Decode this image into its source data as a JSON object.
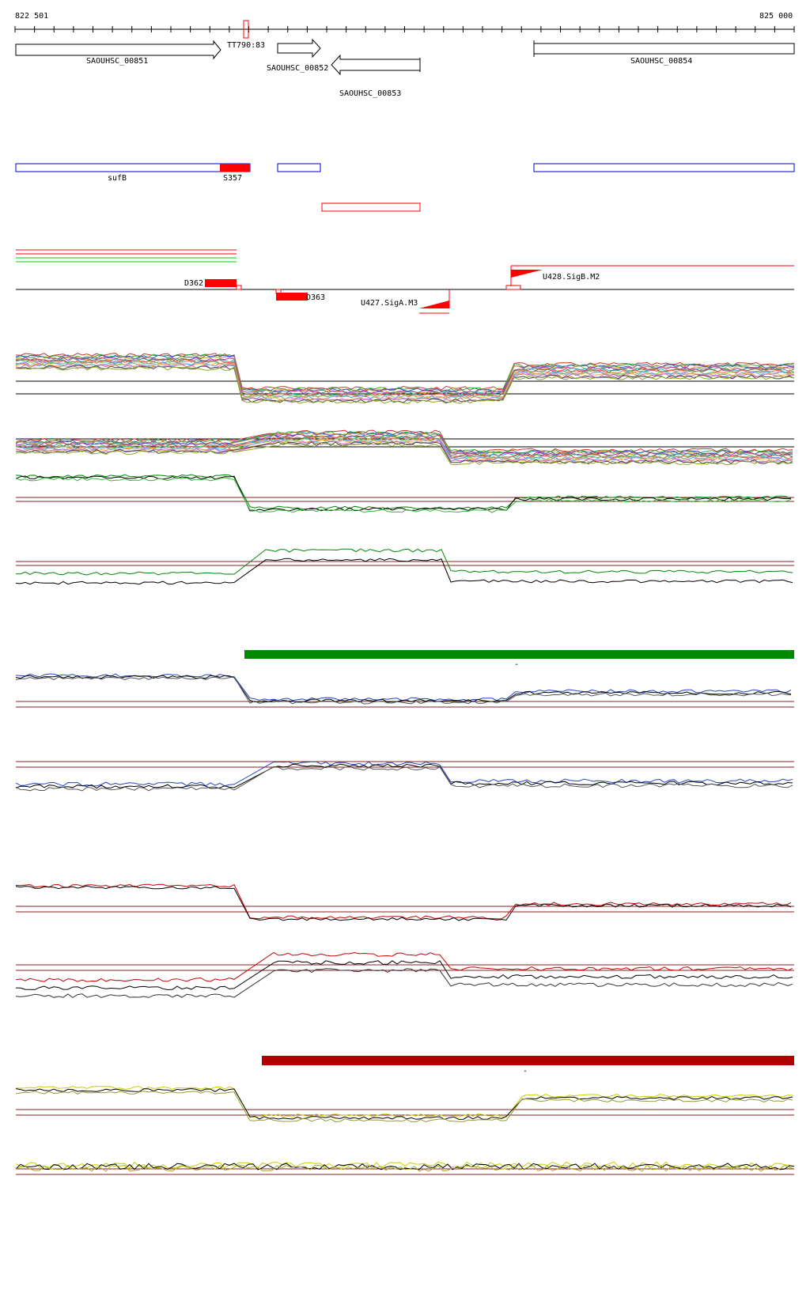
{
  "ruler": {
    "start_label": "822 501",
    "end_label": "825 000",
    "marker_label": "TT790:83"
  },
  "genes": [
    {
      "id": "SAOUHSC_00851",
      "strand": "+"
    },
    {
      "id": "SAOUHSC_00852",
      "strand": "+"
    },
    {
      "id": "SAOUHSC_00853",
      "strand": "-"
    },
    {
      "id": "SAOUHSC_00854",
      "strand": "+"
    }
  ],
  "segments": [
    {
      "label": "sufB",
      "color": "#0000cc"
    },
    {
      "label": "S357",
      "color": "#ff0000"
    }
  ],
  "features": [
    {
      "label": "D362",
      "color": "#ff0000"
    },
    {
      "label": "D363",
      "color": "#ff0000"
    },
    {
      "label": "U427.SigA.M3",
      "color": "#ff0000"
    },
    {
      "label": "U428.SigB.M2",
      "color": "#ff0000"
    }
  ],
  "colors": {
    "green": "#008800",
    "blue": "#2244cc",
    "red": "#cc0000",
    "yellow": "#cccc00",
    "dark_red_bar": "#b00000",
    "ref_line": "#8b2020"
  },
  "bars": [
    {
      "label": "-",
      "color": "#008800"
    },
    {
      "label": "-",
      "color": "#b00000"
    }
  ]
}
